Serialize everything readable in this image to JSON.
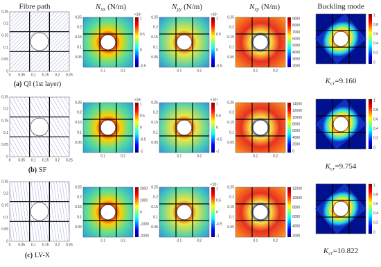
{
  "columns": [
    {
      "title": "Fibre path"
    },
    {
      "symbol": "N",
      "subscript": "xx",
      "unit": "(N/m)"
    },
    {
      "symbol": "N",
      "subscript": "yy",
      "unit": "(N/m)"
    },
    {
      "symbol": "N",
      "subscript": "xy",
      "unit": "(N/m)"
    },
    {
      "title": "Buckling mode"
    }
  ],
  "axes": {
    "fibre_x": [
      "0",
      "0.05",
      "0.1",
      "0.15",
      "0.2",
      "0.25"
    ],
    "fibre_y": [
      "0",
      "0.05",
      "0.1",
      "0.15",
      "0.2",
      "0.25"
    ],
    "map_x": [
      "0.1",
      "0.2"
    ],
    "map_y": [
      "0.05",
      "0.1",
      "0.15",
      "0.2",
      "0.25"
    ]
  },
  "rows": [
    {
      "letter": "(a)",
      "label": "QI (1st layer)",
      "kcr": {
        "symbol": "K",
        "subscript": "cr",
        "value": "=9.160"
      },
      "colorbars": [
        {
          "exponent": "×10⁵",
          "ticks": [
            "1",
            "0.5",
            "0",
            "-0.5"
          ]
        },
        {
          "exponent": "×10⁵",
          "ticks": [
            "1",
            "0.5",
            "0",
            "-0.5"
          ]
        },
        {
          "ticks": [
            "9000",
            "8000",
            "7000",
            "6000",
            "5000",
            "4000",
            "3000",
            "2000"
          ]
        },
        {
          "ticks": [
            "1",
            "0.8",
            "0.6",
            "0.4",
            "0.2",
            "0"
          ]
        }
      ]
    },
    {
      "letter": "(b)",
      "label": "SF",
      "kcr": {
        "symbol": "K",
        "subscript": "cr",
        "value": "=9.754"
      },
      "colorbars": [
        {
          "exponent": "×10⁵",
          "ticks": [
            "1",
            "0.5",
            "0",
            "-0.5",
            "-1"
          ]
        },
        {
          "exponent": "×10⁵",
          "ticks": [
            "1",
            "0.5",
            "0",
            "-0.5",
            "-1"
          ]
        },
        {
          "ticks": [
            "14000",
            "12000",
            "10000",
            "8000",
            "6000",
            "4000",
            "2000",
            "0"
          ]
        },
        {
          "ticks": [
            "1",
            "0.8",
            "0.6",
            "0.4",
            "0.2",
            "0"
          ]
        }
      ]
    },
    {
      "letter": "(c)",
      "label": "LV-X",
      "kcr": {
        "symbol": "K",
        "subscript": "cr",
        "value": "=10.822"
      },
      "colorbars": [
        {
          "ticks": [
            "2000",
            "1000",
            "0",
            "-1000",
            "-2000"
          ]
        },
        {
          "exponent": "×10⁴",
          "ticks": [
            "1",
            "0.5",
            "0",
            "-0.5",
            "-1"
          ]
        },
        {
          "ticks": [
            "12000",
            "10000",
            "8000",
            "6000",
            "4000",
            "2000"
          ]
        },
        {
          "ticks": [
            "1",
            "0.8",
            "0.6",
            "0.4",
            "0.2",
            "0"
          ]
        }
      ]
    }
  ]
}
